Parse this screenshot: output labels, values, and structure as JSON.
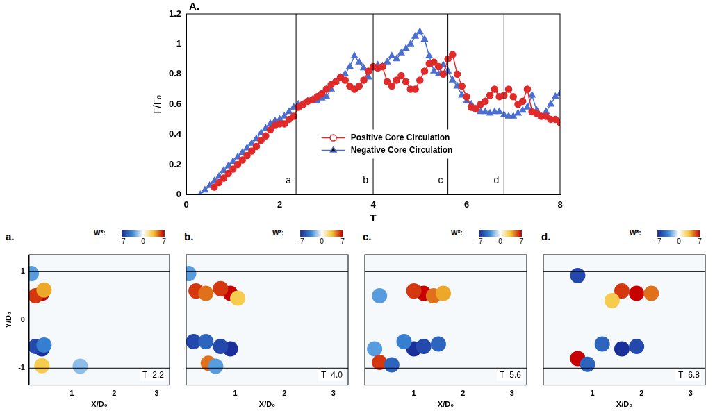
{
  "chart_data": [
    {
      "type": "line",
      "panel": "A.",
      "x_label": "T",
      "y_label": "Γ/Γ₀",
      "xlim": [
        0,
        8
      ],
      "xticks": [
        0,
        2,
        4,
        6,
        8
      ],
      "ylim": [
        0,
        1.2
      ],
      "yticks": [
        0,
        0.2,
        0.4,
        0.6,
        0.8,
        1,
        1.2
      ],
      "grid": false,
      "legend": "center",
      "x": [
        0.3,
        0.4,
        0.5,
        0.6,
        0.7,
        0.8,
        0.9,
        1.0,
        1.1,
        1.2,
        1.3,
        1.4,
        1.5,
        1.6,
        1.7,
        1.8,
        1.9,
        2.0,
        2.1,
        2.2,
        2.3,
        2.4,
        2.5,
        2.6,
        2.7,
        2.8,
        2.9,
        3.0,
        3.1,
        3.2,
        3.3,
        3.4,
        3.5,
        3.6,
        3.7,
        3.8,
        3.9,
        4.0,
        4.1,
        4.2,
        4.3,
        4.4,
        4.5,
        4.6,
        4.7,
        4.8,
        4.9,
        5.0,
        5.1,
        5.2,
        5.3,
        5.4,
        5.5,
        5.6,
        5.7,
        5.8,
        5.9,
        6.0,
        6.1,
        6.2,
        6.3,
        6.4,
        6.5,
        6.6,
        6.7,
        6.8,
        6.9,
        7.0,
        7.1,
        7.2,
        7.3,
        7.4,
        7.5,
        7.6,
        7.7,
        7.8,
        7.9,
        8.0
      ],
      "series": [
        {
          "name": "Positive Core Circulation",
          "color": "#e02a2a",
          "marker": "circle",
          "values": [
            null,
            null,
            null,
            0.05,
            0.08,
            0.11,
            0.14,
            0.17,
            0.2,
            0.23,
            0.26,
            0.29,
            0.32,
            0.36,
            0.39,
            0.43,
            0.46,
            0.47,
            0.47,
            0.5,
            0.52,
            0.58,
            0.6,
            0.62,
            0.63,
            0.65,
            0.67,
            0.7,
            0.73,
            0.75,
            0.78,
            0.76,
            0.72,
            0.7,
            0.72,
            0.76,
            0.82,
            0.85,
            0.84,
            0.85,
            0.75,
            0.72,
            0.76,
            0.79,
            0.75,
            0.7,
            0.7,
            0.76,
            0.82,
            0.87,
            0.88,
            0.85,
            0.8,
            0.9,
            0.93,
            0.8,
            0.72,
            0.65,
            0.58,
            0.57,
            0.6,
            0.62,
            0.66,
            0.7,
            0.65,
            0.66,
            0.7,
            0.65,
            0.6,
            0.62,
            0.7,
            0.55,
            0.54,
            0.52,
            0.52,
            0.5,
            0.5,
            0.48
          ]
        },
        {
          "name": "Negative Core Circulation",
          "color": "#4a6fd0",
          "marker": "triangle",
          "values": [
            0,
            0.03,
            0.06,
            0.09,
            0.12,
            0.16,
            0.19,
            0.22,
            0.25,
            0.28,
            0.31,
            0.34,
            0.37,
            0.41,
            0.44,
            0.47,
            0.49,
            0.5,
            0.52,
            0.55,
            0.58,
            0.6,
            0.6,
            0.62,
            0.63,
            0.62,
            0.64,
            0.65,
            0.7,
            0.75,
            0.78,
            0.8,
            0.85,
            0.92,
            0.88,
            0.84,
            0.78,
            0.84,
            0.86,
            0.85,
            0.88,
            0.92,
            0.9,
            0.94,
            0.97,
            1.0,
            1.05,
            1.08,
            1.03,
            0.92,
            0.82,
            0.8,
            0.86,
            0.82,
            0.76,
            0.72,
            0.66,
            0.62,
            0.6,
            0.57,
            0.55,
            0.55,
            0.54,
            0.55,
            0.55,
            0.53,
            0.52,
            0.52,
            0.54,
            0.56,
            0.58,
            0.66,
            0.56,
            0.52,
            0.55,
            0.6,
            0.65,
            0.67
          ]
        }
      ],
      "annotations": [
        {
          "x": 2.35,
          "label": "a"
        },
        {
          "x": 4.0,
          "label": "b"
        },
        {
          "x": 5.6,
          "label": "c"
        },
        {
          "x": 6.8,
          "label": "d"
        }
      ]
    },
    {
      "type": "scatter",
      "panel": "a.",
      "annotation": "T=2.2",
      "x_label": "X/D₀",
      "y_label": "Y/D₀",
      "xlim": [
        0,
        3.3
      ],
      "xticks": [
        1,
        2,
        3
      ],
      "ylim": [
        -1.35,
        1.35
      ],
      "yticks": [
        -1,
        0,
        1
      ],
      "grid": false,
      "walls": [
        -1,
        1
      ],
      "colorbar": {
        "label": "W*:",
        "range": [
          -7,
          7
        ],
        "ticks": [
          -7,
          0,
          7
        ]
      },
      "cells": {
        "x": [
          0.3,
          0.15,
          0.35,
          0.3,
          0.15,
          0.35,
          0.3,
          0.05,
          1.2
        ],
        "y": [
          0.55,
          0.5,
          0.62,
          -0.6,
          -0.55,
          -0.52,
          -0.95,
          0.96,
          -0.96
        ],
        "w": [
          7,
          6,
          4,
          -7,
          -6,
          -4,
          3,
          -3,
          -2
        ]
      }
    },
    {
      "type": "scatter",
      "panel": "b.",
      "annotation": "T=4.0",
      "x_label": "X/D₀",
      "xlim": [
        0,
        3.3
      ],
      "xticks": [
        1,
        2,
        3
      ],
      "ylim": [
        -1.35,
        1.35
      ],
      "yticks": [
        -1,
        0,
        1
      ],
      "grid": false,
      "tick_labels": "x",
      "walls": [
        -1,
        1
      ],
      "colorbar": {
        "label": "W*:",
        "range": [
          -7,
          7
        ],
        "ticks": [
          -7,
          0,
          7
        ]
      },
      "cells": {
        "x": [
          0.9,
          0.7,
          0.2,
          0.4,
          1.05,
          0.9,
          0.7,
          0.15,
          0.4,
          0.45,
          0.6,
          0.05
        ],
        "y": [
          0.55,
          0.65,
          0.6,
          0.55,
          0.45,
          -0.6,
          -0.55,
          -0.45,
          -0.45,
          -0.9,
          -0.96,
          0.96
        ],
        "w": [
          7,
          6,
          6,
          5,
          3,
          -7,
          -6,
          -6,
          -5,
          5,
          -3,
          -3
        ]
      }
    },
    {
      "type": "scatter",
      "panel": "c.",
      "annotation": "T=5.6",
      "x_label": "X/D₀",
      "xlim": [
        0,
        3.3
      ],
      "xticks": [
        1,
        2,
        3
      ],
      "ylim": [
        -1.35,
        1.35
      ],
      "yticks": [
        -1,
        0,
        1
      ],
      "grid": false,
      "tick_labels": "x",
      "walls": [
        -1,
        1
      ],
      "colorbar": {
        "label": "W*:",
        "range": [
          -7,
          7
        ],
        "ticks": [
          -7,
          0,
          7
        ]
      },
      "cells": {
        "x": [
          1.2,
          1.0,
          1.4,
          1.6,
          1.0,
          1.2,
          1.5,
          0.8,
          0.3,
          0.2,
          0.3,
          0.55
        ],
        "y": [
          0.55,
          0.6,
          0.5,
          0.55,
          -0.6,
          -0.55,
          -0.5,
          -0.45,
          0.5,
          -0.6,
          -0.88,
          -0.93
        ],
        "w": [
          7,
          6,
          5,
          4,
          -7,
          -6,
          -5,
          -4,
          -3,
          -3,
          6,
          -5
        ]
      }
    },
    {
      "type": "scatter",
      "panel": "d.",
      "annotation": "T=6.8",
      "x_label": "X/D₀",
      "xlim": [
        0,
        3.3
      ],
      "xticks": [
        1,
        2,
        3
      ],
      "ylim": [
        -1.35,
        1.35
      ],
      "yticks": [
        -1,
        0,
        1
      ],
      "grid": false,
      "tick_labels": "x",
      "walls": [
        -1,
        1
      ],
      "colorbar": {
        "label": "W*:",
        "range": [
          -7,
          7
        ],
        "ticks": [
          -7,
          0,
          7
        ]
      },
      "cells": {
        "x": [
          1.9,
          1.6,
          2.2,
          1.6,
          1.9,
          1.2,
          0.7,
          0.7,
          0.9,
          1.4
        ],
        "y": [
          0.55,
          0.6,
          0.55,
          -0.6,
          -0.55,
          -0.5,
          0.92,
          -0.8,
          -0.92,
          0.4
        ],
        "w": [
          7,
          6,
          5,
          -7,
          -6,
          -5,
          -6,
          7,
          -5,
          3
        ]
      }
    }
  ]
}
